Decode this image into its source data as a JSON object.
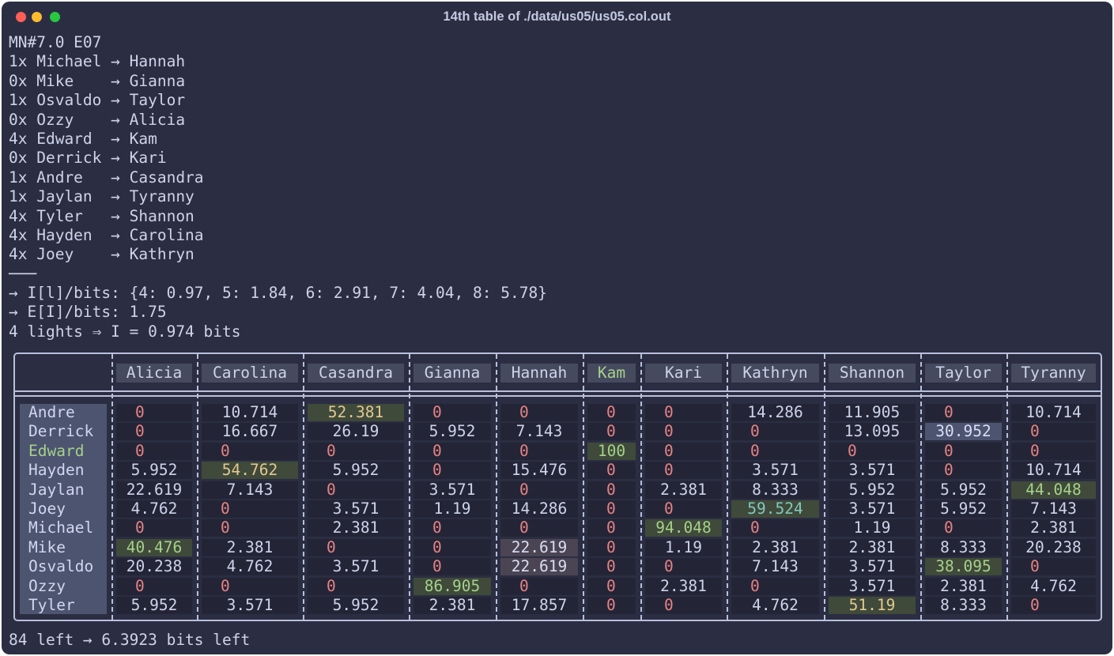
{
  "window": {
    "title": "14th table of ./data/us05/us05.col.out"
  },
  "log": [
    "MN#7.0 E07",
    "1x Michael → Hannah",
    "0x Mike    → Gianna",
    "1x Osvaldo → Taylor",
    "0x Ozzy    → Alicia",
    "4x Edward  → Kam",
    "0x Derrick → Kari",
    "1x Andre   → Casandra",
    "1x Jaylan  → Tyranny",
    "4x Tyler   → Shannon",
    "4x Hayden  → Carolina",
    "4x Joey    → Kathryn",
    "───",
    "→ I[l]/bits: {4: 0.97, 5: 1.84, 6: 2.91, 7: 4.04, 8: 5.78}",
    "→ E[I]/bits: 1.75",
    "4 lights ⇒ I = 0.974 bits"
  ],
  "table": {
    "columns": [
      "Alicia",
      "Carolina",
      "Casandra",
      "Gianna",
      "Hannah",
      "Kam",
      "Kari",
      "Kathryn",
      "Shannon",
      "Taylor",
      "Tyranny"
    ],
    "rows": [
      {
        "name": "Andre",
        "values": [
          "0",
          "10.714",
          "52.381",
          "0",
          "0",
          "0",
          "0",
          "14.286",
          "11.905",
          "0",
          "10.714"
        ]
      },
      {
        "name": "Derrick",
        "values": [
          "0",
          "16.667",
          "26.19",
          "5.952",
          "7.143",
          "0",
          "0",
          "0",
          "13.095",
          "30.952",
          "0"
        ]
      },
      {
        "name": "Edward",
        "values": [
          "0",
          "0",
          "0",
          "0",
          "0",
          "100",
          "0",
          "0",
          "0",
          "0",
          "0"
        ]
      },
      {
        "name": "Hayden",
        "values": [
          "5.952",
          "54.762",
          "5.952",
          "0",
          "15.476",
          "0",
          "0",
          "3.571",
          "3.571",
          "0",
          "10.714"
        ]
      },
      {
        "name": "Jaylan",
        "values": [
          "22.619",
          "7.143",
          "0",
          "3.571",
          "0",
          "0",
          "2.381",
          "8.333",
          "5.952",
          "5.952",
          "44.048"
        ]
      },
      {
        "name": "Joey",
        "values": [
          "4.762",
          "0",
          "3.571",
          "1.19",
          "14.286",
          "0",
          "0",
          "59.524",
          "3.571",
          "5.952",
          "7.143"
        ]
      },
      {
        "name": "Michael",
        "values": [
          "0",
          "0",
          "2.381",
          "0",
          "0",
          "0",
          "94.048",
          "0",
          "1.19",
          "0",
          "2.381"
        ]
      },
      {
        "name": "Mike",
        "values": [
          "40.476",
          "2.381",
          "0",
          "0",
          "22.619",
          "0",
          "1.19",
          "2.381",
          "2.381",
          "8.333",
          "20.238"
        ]
      },
      {
        "name": "Osvaldo",
        "values": [
          "20.238",
          "4.762",
          "3.571",
          "0",
          "22.619",
          "0",
          "0",
          "7.143",
          "3.571",
          "38.095",
          "0"
        ]
      },
      {
        "name": "Ozzy",
        "values": [
          "0",
          "0",
          "0",
          "86.905",
          "0",
          "0",
          "2.381",
          "0",
          "3.571",
          "2.381",
          "4.762"
        ]
      },
      {
        "name": "Tyler",
        "values": [
          "5.952",
          "3.571",
          "5.952",
          "2.381",
          "17.857",
          "0",
          "0",
          "4.762",
          "51.19",
          "8.333",
          "0"
        ]
      }
    ]
  },
  "footer": "84 left → 6.3923 bits left",
  "colors": {
    "background": "#2b2e42",
    "text": "#cfd3ea",
    "zero": "#e78284",
    "highlight_yellow": "#e5c890",
    "highlight_green": "#a6d189",
    "highlight_teal": "#81c8be"
  }
}
